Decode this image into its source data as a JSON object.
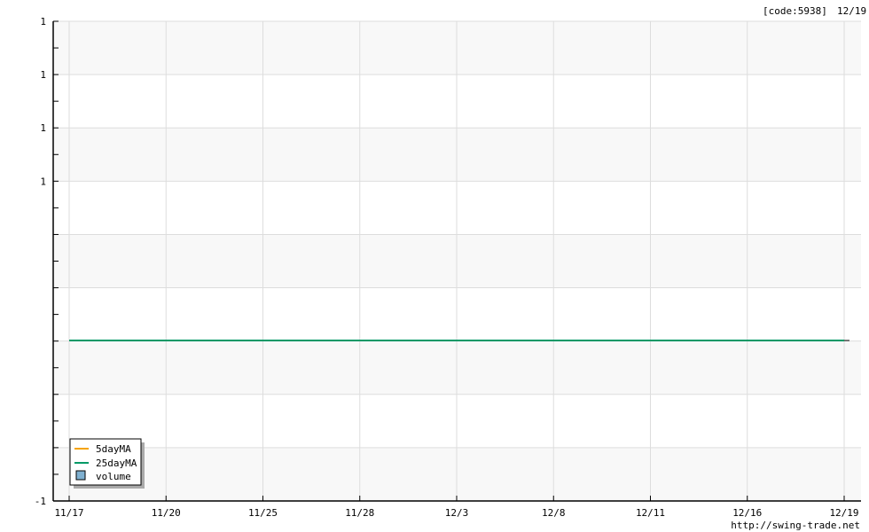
{
  "header": {
    "code": "[code:5938]",
    "date": "12/19"
  },
  "footer": {
    "url": "http://swing-trade.net"
  },
  "colors": {
    "ma5": "#f5a300",
    "ma25": "#009966",
    "volume": "#7fb0d0",
    "band": "#f8f8f8",
    "grid": "#dddddd"
  },
  "chart_data": {
    "type": "line",
    "x": [
      "11/17",
      "11/20",
      "11/25",
      "11/28",
      "12/3",
      "12/8",
      "12/11",
      "12/16",
      "12/19"
    ],
    "y_tick_labels": [
      "1",
      "1",
      "1",
      "1",
      "",
      "",
      "",
      "",
      "",
      "-1"
    ],
    "series": [
      {
        "name": "5dayMA",
        "values": [
          0,
          0,
          0,
          0,
          0,
          0,
          0,
          0,
          0
        ]
      },
      {
        "name": "25dayMA",
        "values": [
          0,
          0,
          0,
          0,
          0,
          0,
          0,
          0,
          0
        ]
      }
    ],
    "legend": {
      "placement": "bottom-left",
      "entries": [
        "5dayMA",
        "25dayMA",
        "volume"
      ]
    },
    "grid": true
  }
}
